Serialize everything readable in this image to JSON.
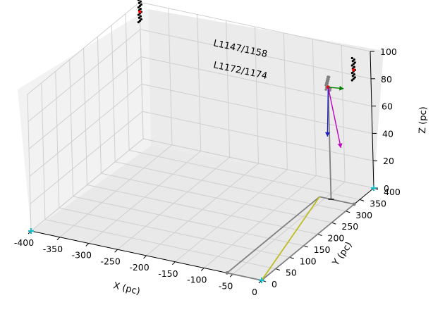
{
  "chart_data": {
    "type": "scatter",
    "projection": "3d",
    "grid": true,
    "xlabel": "X (pc)",
    "ylabel": "Y (pc)",
    "zlabel": "Z (pc)",
    "xlim": [
      -400,
      0
    ],
    "ylim": [
      0,
      400
    ],
    "zlim": [
      0,
      100
    ],
    "xticks": [
      "-400",
      "-350",
      "-300",
      "-250",
      "-200",
      "-150",
      "-100",
      "-50",
      "0"
    ],
    "yticks": [
      "0",
      "50",
      "100",
      "150",
      "200",
      "250",
      "300",
      "350",
      "400"
    ],
    "zticks": [
      "0",
      "20",
      "40",
      "60",
      "80",
      "100"
    ],
    "annotations": [
      {
        "text": "L1147/1158",
        "x": -110,
        "y": 330,
        "z": 95
      },
      {
        "text": "L1172/1174",
        "x": -110,
        "y": 330,
        "z": 85
      }
    ],
    "colors": {
      "cluster_points": "#000000",
      "centers": "#ff0000",
      "track_points": "#808080",
      "box_lines": "#808080",
      "diagonal": "#bcbd22",
      "cross_markers": "#17becf",
      "vec_green": "#008000",
      "vec_blue": "#1f1fbf",
      "vec_magenta": "#c000c0",
      "track_line": "#808080"
    },
    "series": [
      {
        "kind": "cluster",
        "x": -395,
        "y": 390,
        "z": 95
      },
      {
        "kind": "cluster",
        "x": -20,
        "y": 380,
        "z": 88
      }
    ],
    "track": {
      "x": -40,
      "y": 330,
      "z_top": 82,
      "z_bottom": 0
    },
    "box": {
      "x": [
        -60,
        0
      ],
      "y": [
        0,
        330
      ]
    },
    "crosses": [
      {
        "x": -400,
        "y": 0,
        "z": 0
      },
      {
        "x": 0,
        "y": 400,
        "z": 0
      },
      {
        "x": 0,
        "y": 0,
        "z": 0
      }
    ]
  }
}
